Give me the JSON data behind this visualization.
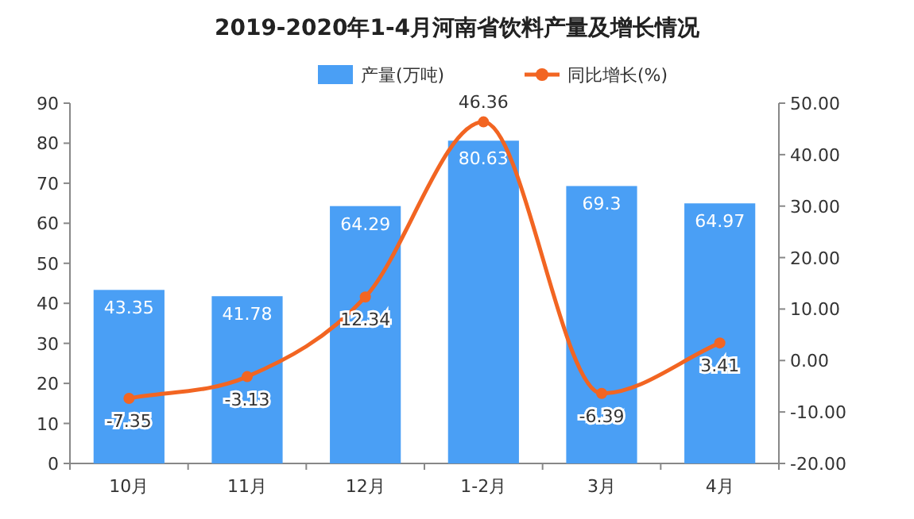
{
  "chart_data": {
    "type": "bar",
    "title": "2019-2020年1-4月河南省饮料产量及增长情况",
    "categories": [
      "10月",
      "11月",
      "12月",
      "1-2月",
      "3月",
      "4月"
    ],
    "series": [
      {
        "name": "产量(万吨)",
        "color": "#4a9ff5",
        "values": [
          43.35,
          41.78,
          64.29,
          80.63,
          69.3,
          64.97
        ]
      },
      {
        "name": "同比增长(%)",
        "type": "line",
        "axis": "y2",
        "color": "#f26522",
        "marker": "circle",
        "values": [
          -7.35,
          -3.13,
          12.34,
          46.36,
          -6.39,
          3.41
        ]
      }
    ],
    "ylim": [
      0,
      90
    ],
    "yticks": [
      0,
      10,
      20,
      30,
      40,
      50,
      60,
      70,
      80,
      90
    ],
    "y2lim": [
      -20,
      50
    ],
    "y2ticks": [
      {
        "value": -20,
        "label": "-20.00"
      },
      {
        "value": -10,
        "label": "-10.00"
      },
      {
        "value": 0,
        "label": "0.00"
      },
      {
        "value": 10,
        "label": "10.00"
      },
      {
        "value": 20,
        "label": "20.00"
      },
      {
        "value": 30,
        "label": "30.00"
      },
      {
        "value": 40,
        "label": "40.00"
      },
      {
        "value": 50,
        "label": "50.00"
      }
    ],
    "data_labels": true,
    "legend": "top",
    "grid": false
  }
}
